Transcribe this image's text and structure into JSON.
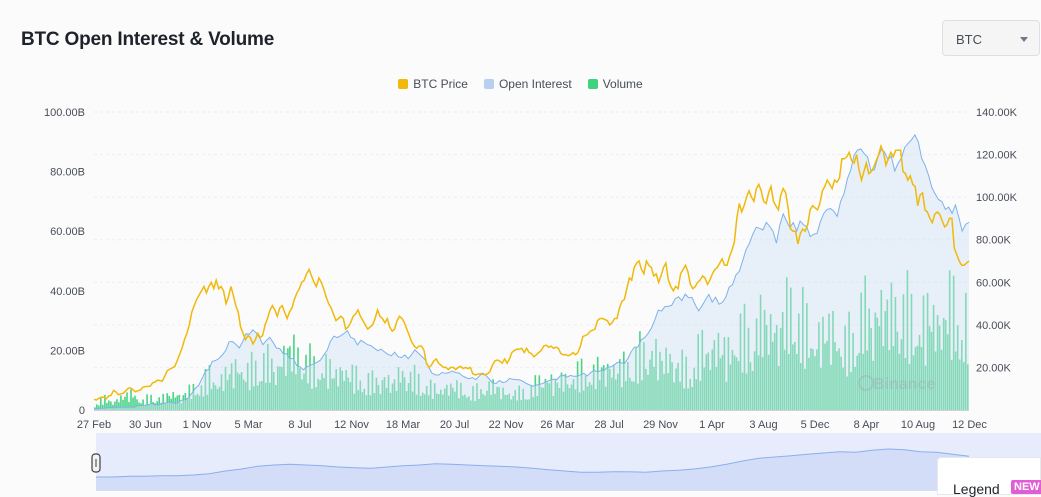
{
  "header": {
    "title": "BTC Open Interest & Volume"
  },
  "selector": {
    "value": "BTC"
  },
  "legend_box": {
    "label": "Legend",
    "badge": "NEW"
  },
  "watermark": "Binance",
  "chart_data": {
    "type": "line",
    "series": [
      {
        "name": "BTC Price",
        "color": "#f0b90b",
        "axis": "right",
        "values": [
          5000,
          4700,
          5500,
          6000,
          6000,
          5200,
          6600,
          6900,
          9200,
          8500,
          7200,
          7600,
          7900,
          9000,
          10200,
          10400,
          9400,
          8500,
          9100,
          9300,
          10700,
          11000,
          11100,
          11200,
          12800,
          13200,
          14000,
          13800,
          13600,
          16000,
          18500,
          19200,
          19800,
          20400,
          23000,
          26000,
          29000,
          33000,
          36000,
          40000,
          46000,
          49000,
          52000,
          54000,
          56000,
          58000,
          55000,
          58000,
          60000,
          57000,
          61000,
          57000,
          58000,
          56000,
          50000,
          53000,
          58000,
          54000,
          49000,
          46000,
          39000,
          36000,
          33000,
          35000,
          34000,
          31000,
          33000,
          36000,
          34000,
          35000,
          40000,
          43000,
          47000,
          49000,
          47000,
          44000,
          48000,
          49000,
          46000,
          43000,
          46000,
          48000,
          52000,
          55000,
          57000,
          60000,
          61000,
          64000,
          66000,
          63000,
          60000,
          58000,
          62000,
          60000,
          57000,
          53000,
          50000,
          48000,
          45000,
          42000,
          43000,
          44000,
          43000,
          38000,
          39000,
          41000,
          44000,
          45000,
          47000,
          44000,
          42000,
          40000,
          38000,
          39000,
          40000,
          43000,
          47000,
          44000,
          43000,
          41000,
          43000,
          39000,
          37000,
          38000,
          42000,
          44000,
          43000,
          41000,
          38000,
          35000,
          32000,
          30000,
          29000,
          30000,
          30000,
          28000,
          22000,
          20000,
          21000,
          23000,
          24000,
          22000,
          21000,
          20000,
          20000,
          19000,
          20000,
          20000,
          19000,
          20000,
          20500,
          19500,
          20000,
          19500,
          20000,
          17000,
          16500,
          16800,
          17000,
          16800,
          16600,
          17000,
          18000,
          21000,
          23000,
          23500,
          23000,
          22000,
          24000,
          22000,
          24000,
          27000,
          28000,
          28500,
          28500,
          29000,
          27000,
          29000,
          27000,
          26500,
          25000,
          26000,
          27000,
          28000,
          30000,
          30500,
          29500,
          30000,
          29000,
          29500,
          29000,
          26500,
          26000,
          26000,
          25500,
          26000,
          27000,
          26000,
          27000,
          30000,
          34500,
          35000,
          35500,
          37000,
          37500,
          38000,
          42000,
          43000,
          43000,
          42500,
          42000,
          40000,
          41000,
          43000,
          43000,
          48000,
          51000,
          52000,
          57000,
          62000,
          61000,
          67000,
          69000,
          70000,
          66000,
          64000,
          70000,
          68000,
          67000,
          63000,
          64000,
          60000,
          63000,
          67000,
          69000,
          61000,
          58000,
          56000,
          58000,
          57000,
          64000,
          66000,
          68000,
          65000,
          59000,
          57000,
          58000,
          60000,
          61000,
          63000,
          62000,
          59000,
          61000,
          64000,
          66000,
          67000,
          69000,
          71000,
          68000,
          68000,
          72000,
          75000,
          79000,
          90000,
          97000,
          93000,
          96000,
          100000,
          103000,
          100000,
          98000,
          104000,
          106000,
          103000,
          98000,
          97000,
          102000,
          105000,
          98000,
          96000,
          94000,
          101000,
          104000,
          102000,
          95000,
          85000,
          84000,
          84000,
          78000,
          83000,
          85000,
          84000,
          87000,
          94000,
          96000,
          95000,
          94000,
          97000,
          103000,
          105000,
          108000,
          106000,
          104000,
          108000,
          107000,
          109000,
          118000,
          118000,
          119000,
          121000,
          117000,
          116000,
          120000,
          113000,
          108000,
          112000,
          116000,
          111000,
          112000,
          114000,
          117000,
          120000,
          124000,
          121000,
          115000,
          118000,
          121000,
          119000,
          122000,
          122000,
          122000,
          112000,
          111000,
          108000,
          110000,
          106000,
          105000,
          96000,
          101000,
          102000,
          94000,
          93000,
          90000,
          88000,
          92000,
          93000,
          92000,
          89000,
          86000,
          87000,
          90000,
          90000,
          76000,
          73000,
          70000,
          68000,
          68000,
          69000,
          70000
        ]
      },
      {
        "name": "Open Interest",
        "color": "#b8d0f0",
        "axis": "left",
        "values": [
          0.4,
          0.4,
          0.6,
          0.6,
          0.8,
          0.8,
          0.8,
          0.9,
          1.0,
          0.9,
          0.9,
          1.0,
          0.9,
          1.5,
          1.5,
          1.6,
          1.7,
          2.2,
          1.7,
          1.7,
          2.1,
          2.3,
          2.7,
          2.6,
          2.2,
          2.6,
          3.3,
          3.5,
          4.1,
          5.7,
          7.3,
          8.3,
          10.6,
          13.1,
          13.6,
          16.3,
          16.6,
          17.3,
          18.5,
          20.0,
          22.9,
          23.0,
          22.0,
          20.8,
          22.9,
          25.6,
          25.4,
          26.9,
          25.9,
          24.3,
          21.9,
          23.3,
          24.4,
          22.7,
          20.8,
          20.6,
          18.9,
          18.9,
          17.2,
          17.3,
          14.9,
          14.5,
          13.5,
          14.4,
          15.0,
          15.4,
          16.0,
          16.7,
          18.4,
          20.0,
          23.1,
          24.8,
          24.3,
          24.9,
          25.7,
          26.6,
          24.4,
          23.9,
          21.8,
          23.4,
          22.7,
          21.9,
          21.6,
          20.7,
          19.9,
          20.4,
          19.5,
          18.7,
          18.2,
          19.4,
          17.9,
          17.6,
          18.5,
          17.2,
          18.6,
          20.2,
          19.1,
          18.0,
          16.9,
          14.6,
          12.4,
          11.8,
          11.7,
          12.6,
          12.3,
          12.5,
          13.1,
          12.6,
          12.4,
          11.5,
          10.9,
          10.5,
          10.9,
          10.2,
          11.3,
          12.4,
          11.6,
          10.4,
          9.1,
          8.9,
          9.9,
          9.2,
          9.5,
          10.6,
          10.3,
          10.2,
          10.1,
          9.6,
          8.9,
          8.4,
          8.0,
          8.4,
          8.6,
          9.0,
          9.6,
          10.0,
          10.3,
          10.2,
          11.4,
          11.6,
          11.0,
          11.6,
          11.3,
          11.3,
          11.8,
          12.3,
          11.4,
          12.5,
          13.4,
          12.8,
          13.2,
          13.3,
          14.3,
          14.5,
          15.2,
          16.0,
          15.8,
          15.6,
          17.2,
          19.6,
          21.1,
          21.1,
          23.6,
          24.3,
          25.7,
          27.5,
          30.2,
          33.5,
          33.2,
          34.7,
          34.8,
          35.1,
          37.3,
          38.0,
          36.7,
          38.9,
          37.7,
          37.8,
          35.2,
          33.3,
          35.0,
          37.0,
          38.8,
          36.2,
          37.9,
          35.5,
          36.1,
          37.9,
          41.2,
          42.0,
          45.3,
          46.5,
          50.0,
          53.8,
          55.9,
          59.0,
          61.3,
          61.0,
          60.4,
          63.0,
          61.6,
          59.9,
          56.0,
          62.0,
          65.8,
          63.4,
          61.2,
          62.9,
          60.0,
          63.4,
          62.2,
          61.4,
          58.2,
          59.0,
          59.2,
          63.2,
          65.9,
          67.3,
          67.6,
          66.7,
          65.0,
          70.0,
          72.5,
          77.6,
          80.6,
          85.6,
          87.2,
          87.6,
          86.0,
          84.9,
          80.2,
          80.6,
          84.7,
          87.4,
          86.6,
          84.1,
          85.2,
          80.2,
          82.8,
          84.5,
          88.2,
          89.5,
          90.7,
          92.3,
          90.0,
          84.4,
          82.1,
          78.8,
          74.7,
          72.5,
          70.6,
          69.9,
          67.3,
          68.1,
          66.0,
          68.8,
          64.6,
          60.0,
          62.3,
          63.0
        ]
      },
      {
        "name": "Volume",
        "color": "#3fd27f",
        "axis": "left",
        "values": [
          2,
          4,
          3,
          5,
          6,
          3,
          5,
          4,
          6,
          5,
          7,
          9,
          12,
          10,
          14,
          16,
          13,
          18,
          17,
          15,
          22,
          20,
          19,
          14,
          16,
          13,
          15,
          12,
          11,
          10,
          12,
          9,
          14,
          12,
          10,
          8,
          7,
          9,
          8,
          6,
          7,
          9,
          8,
          6,
          6,
          7,
          9,
          12,
          10,
          11,
          12,
          14,
          13,
          16,
          15,
          15,
          18,
          20,
          22,
          18,
          19,
          16,
          14,
          21,
          22,
          24,
          20,
          28,
          26,
          30,
          32,
          29,
          34,
          38,
          30,
          25,
          28,
          30,
          22,
          27,
          36,
          32,
          38,
          34,
          40,
          33,
          30,
          35,
          31,
          38,
          34,
          32
        ]
      },
      {
        "name": "Navigator",
        "color": "#8aaef0",
        "values": [
          0.3,
          0.3,
          0.4,
          0.4,
          0.5,
          0.5,
          0.6,
          0.8,
          1.2,
          1.5,
          1.9,
          2.1,
          2.2,
          2.1,
          2.0,
          1.8,
          1.7,
          1.6,
          1.8,
          2.0,
          2.1,
          2.3,
          2.2,
          2.1,
          2.0,
          1.9,
          1.8,
          1.6,
          1.4,
          1.2,
          1.0,
          1.0,
          1.1,
          1.1,
          1.0,
          1.2,
          1.3,
          1.5,
          1.8,
          2.2,
          2.7,
          3.1,
          3.3,
          3.5,
          3.7,
          3.9,
          4.1,
          4.0,
          4.3,
          4.5,
          4.4,
          4.1,
          4.0,
          3.7,
          3.4
        ]
      }
    ],
    "x_tick_labels": [
      "27 Feb",
      "30 Jun",
      "1 Nov",
      "5 Mar",
      "8 Jul",
      "12 Nov",
      "18 Mar",
      "20 Jul",
      "22 Nov",
      "26 Mar",
      "28 Jul",
      "29 Nov",
      "1 Apr",
      "3 Aug",
      "5 Dec",
      "8 Apr",
      "10 Aug",
      "12 Dec"
    ],
    "y_left_ticks": [
      "0",
      "20.00B",
      "40.00B",
      "60.00B",
      "80.00B",
      "100.00B"
    ],
    "y_right_ticks": [
      "20.00K",
      "40.00K",
      "60.00K",
      "80.00K",
      "100.00K",
      "120.00K",
      "140.00K"
    ],
    "y_left_unit": "B",
    "ylim_left": [
      0,
      100
    ],
    "ylim_right": [
      0,
      140000
    ],
    "legend_position": "top-center",
    "grid": true
  }
}
